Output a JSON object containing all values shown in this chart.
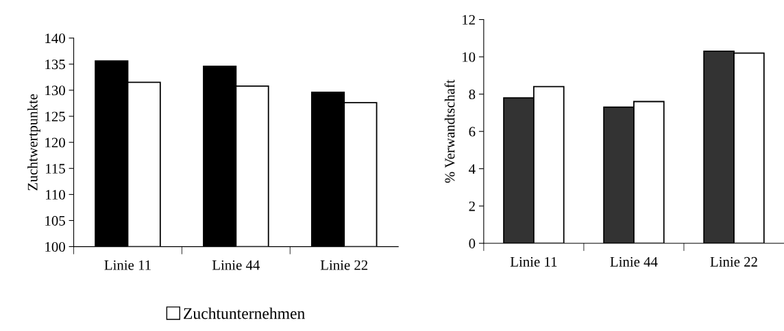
{
  "chart_data": [
    {
      "type": "bar",
      "ylabel": "Zuchtwertpunkte",
      "categories": [
        "Linie 11",
        "Linie 44",
        "Linie 22"
      ],
      "series": [
        {
          "color": "#000000",
          "values": [
            135.6,
            134.6,
            129.6
          ]
        },
        {
          "name": "Zuchtunternehmen",
          "color": "#ffffff",
          "values": [
            131.5,
            130.8,
            127.6
          ]
        }
      ],
      "ylim": [
        100,
        140
      ],
      "yticks": [
        100,
        105,
        110,
        115,
        120,
        125,
        130,
        135,
        140
      ],
      "grid": false,
      "legend": "bottom"
    },
    {
      "type": "bar",
      "ylabel": "% Verwandtschaft",
      "categories": [
        "Linie 11",
        "Linie 44",
        "Linie 22"
      ],
      "series": [
        {
          "color": "#333333",
          "values": [
            7.8,
            7.3,
            10.3
          ]
        },
        {
          "color": "#ffffff",
          "values": [
            8.4,
            7.6,
            10.2
          ]
        }
      ],
      "ylim": [
        0,
        12
      ],
      "yticks": [
        0,
        2,
        4,
        6,
        8,
        10,
        12
      ],
      "grid": false
    }
  ]
}
